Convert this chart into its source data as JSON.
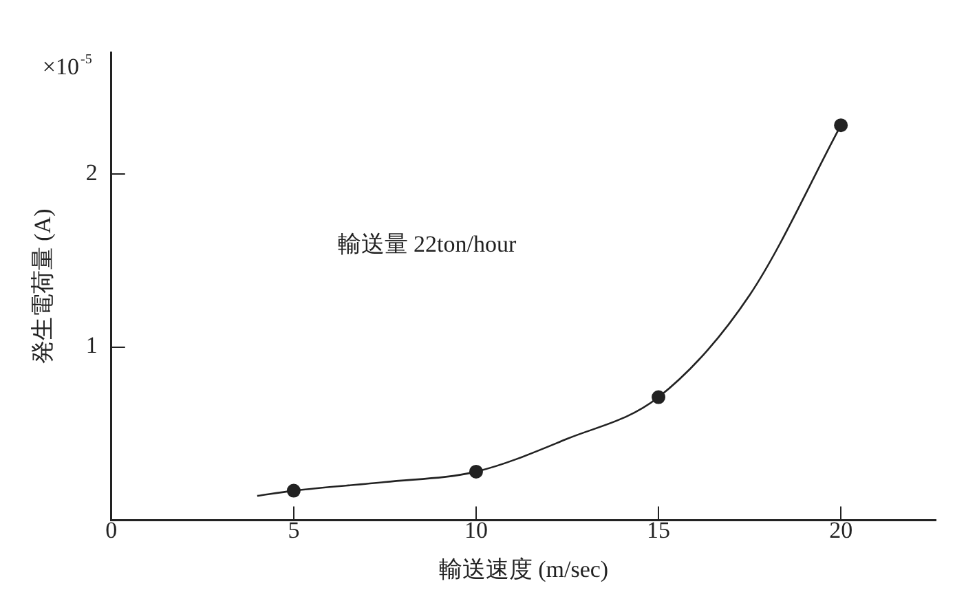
{
  "chart_data": {
    "type": "scatter",
    "xlabel": "輸送速度 (m/sec)",
    "ylabel": "発生電荷量 (A)",
    "annotations": [
      "×10$^{-5}$",
      "輸送量 22ton/hour"
    ],
    "xlim": [
      0,
      22.6
    ],
    "xticks": [
      0,
      5,
      10,
      15,
      20
    ],
    "ylim": [
      0,
      2.7
    ],
    "yticks": [
      1,
      2
    ],
    "grid": false,
    "legend": false,
    "series": [
      {
        "color": "#222222",
        "marker": "circle",
        "x": [
          5,
          10,
          15,
          20
        ],
        "values": [
          0.17,
          0.28,
          0.71,
          2.28
        ]
      },
      {
        "type": "line",
        "color": "#222222",
        "marker": "none",
        "x": [
          4,
          5,
          7.5,
          10,
          12.5,
          15,
          17.5,
          20
        ],
        "values": [
          0.14,
          0.17,
          0.22,
          0.28,
          0.47,
          0.71,
          1.3,
          2.28
        ]
      }
    ]
  }
}
